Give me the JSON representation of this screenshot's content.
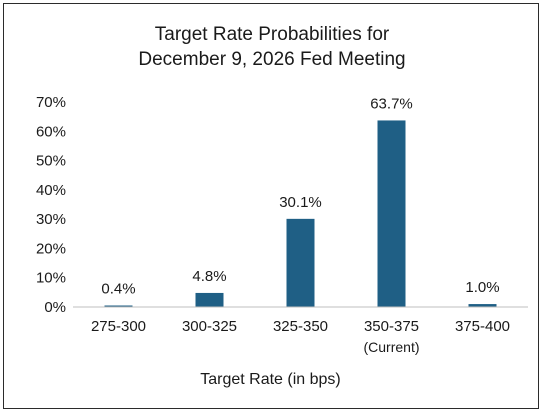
{
  "chart_data": {
    "type": "bar",
    "title": "Target Rate Probabilities for",
    "subtitle": "December 9, 2026 Fed Meeting",
    "xlabel": "Target Rate (in bps)",
    "ylabel": "",
    "ylim": [
      0,
      70
    ],
    "yticks": [
      "0%",
      "10%",
      "20%",
      "30%",
      "40%",
      "50%",
      "60%",
      "70%"
    ],
    "categories": [
      "275-300",
      "300-325",
      "325-350",
      "350-375",
      "375-400"
    ],
    "category_sublabels": [
      "",
      "",
      "",
      "(Current)",
      ""
    ],
    "values": [
      0.4,
      4.8,
      30.1,
      63.7,
      1.0
    ],
    "data_labels": [
      "0.4%",
      "4.8%",
      "30.1%",
      "63.7%",
      "1.0%"
    ],
    "bar_color": "#1f5f85",
    "grid": false,
    "legend": "none"
  }
}
